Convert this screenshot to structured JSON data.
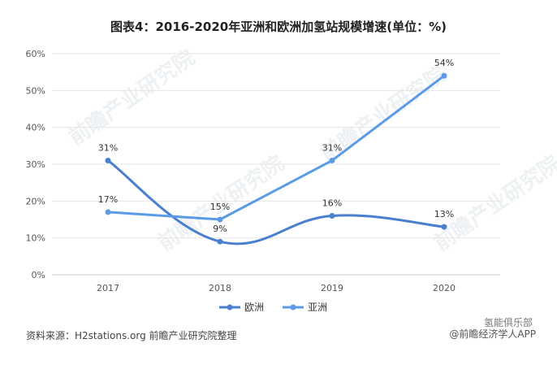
{
  "title": "图表4：2016-2020年亚洲和欧洲加氢站规模增速(单位：%)",
  "footer": "资料来源：H2stations.org 前瞻产业研究院整理",
  "brand": {
    "line1": "氢能俱乐部",
    "line2": "@前瞻经济学人APP"
  },
  "watermark": "前瞻产业研究院",
  "colors": {
    "europe": "#4a7fcf",
    "asia": "#5b9be6",
    "grid": "#e6e6e6",
    "axis": "#cccccc"
  },
  "chart_data": {
    "type": "line",
    "categories": [
      "2017",
      "2018",
      "2019",
      "2020"
    ],
    "ylim": [
      0,
      60
    ],
    "yticks": [
      "0%",
      "10%",
      "20%",
      "30%",
      "40%",
      "50%",
      "60%"
    ],
    "grid": "horizontal",
    "legend_position": "bottom-center",
    "series": [
      {
        "name": "欧洲",
        "values": [
          31,
          9,
          16,
          13
        ],
        "labels": [
          "31%",
          "9%",
          "16%",
          "13%"
        ],
        "smooth": true
      },
      {
        "name": "亚洲",
        "values": [
          17,
          15,
          31,
          54
        ],
        "labels": [
          "17%",
          "15%",
          "31%",
          "54%"
        ],
        "smooth": false
      }
    ]
  }
}
